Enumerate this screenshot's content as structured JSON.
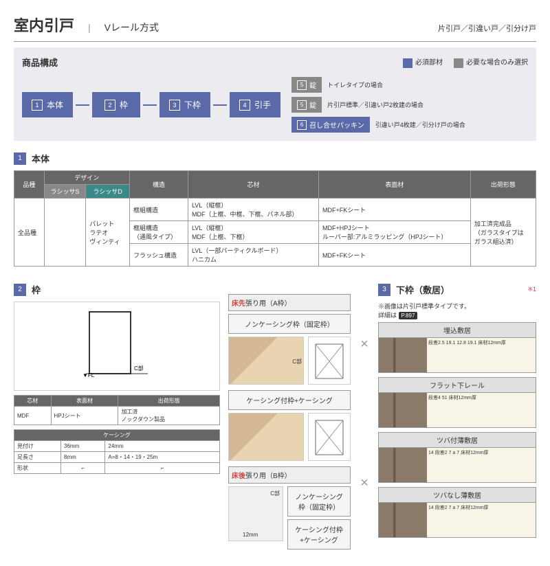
{
  "header": {
    "title": "室内引戸",
    "sep": "|",
    "subtitle": "Vレール方式",
    "right": "片引戸／引違い戸／引分け戸"
  },
  "composition": {
    "title": "商品構成",
    "legend": [
      {
        "color": "#5a6aa8",
        "label": "必須部材"
      },
      {
        "color": "#888",
        "label": "必要な場合のみ選択"
      }
    ],
    "boxes": [
      {
        "n": "1",
        "t": "本体"
      },
      {
        "n": "2",
        "t": "枠"
      },
      {
        "n": "3",
        "t": "下枠"
      },
      {
        "n": "4",
        "t": "引手"
      }
    ],
    "branches": [
      {
        "n": "5",
        "t": "錠",
        "cls": "gray",
        "note": "トイレタイプの場合"
      },
      {
        "n": "5",
        "t": "錠",
        "cls": "gray",
        "note": "片引戸標準／引違い戸2枚建の場合"
      },
      {
        "n": "6",
        "t": "召し合せパッキン",
        "cls": "blue",
        "note": "引違い戸4枚建／引分け戸の場合"
      }
    ]
  },
  "sec1": {
    "num": "1",
    "title": "本体"
  },
  "table1": {
    "headers": [
      "品種",
      "デザイン",
      "",
      "構造",
      "芯材",
      "表面材",
      "出荷形態"
    ],
    "sub": [
      "",
      "ラシッサS",
      "ラシッサD",
      "",
      "",
      "",
      ""
    ],
    "rows": [
      [
        "全品種",
        "",
        "パレット\nラテオ\nヴィンティ",
        "框組構造",
        "LVL（縦框）\nMDF（上框、中框、下框、パネル部）",
        "MDF+FKシート",
        "加工済完成品\n（ガラスタイプは\nガラス組込済）"
      ],
      [
        "",
        "",
        "",
        "框組構造\n（通風タイプ）",
        "LVL（縦框）\nMDF（上框、下框）",
        "MDF+HPJシート\nルーバー部:アルミラッピング（HPJシート）",
        ""
      ],
      [
        "",
        "",
        "",
        "フラッシュ構造",
        "LVL（一部パーティクルボード）\nハニカム",
        "MDF+FKシート",
        ""
      ]
    ]
  },
  "sec2": {
    "num": "2",
    "title": "枠"
  },
  "sec3": {
    "num": "3",
    "title": "下枠（敷居）",
    "note": "※1"
  },
  "sec3note": "※画像は片引戸標準タイプです。\n詳細は",
  "sec3ref": "P.897",
  "frame": {
    "tbl1": {
      "h": [
        "芯材",
        "表面材",
        "出荷形態"
      ],
      "r": [
        "MDF",
        "HPJシート",
        "加工済\nノックダウン製品"
      ]
    },
    "tbl2": {
      "h": [
        "ケーシング"
      ],
      "sub": [
        "見付け",
        "36mm",
        "24mm"
      ],
      "r1": [
        "足長さ",
        "8mm",
        "A=8・14・19・25m"
      ],
      "r2": [
        "形状",
        "",
        ""
      ]
    },
    "a": {
      "label": "床先張り用（A枠）",
      "opts": [
        "ノンケーシング枠（固定枠）",
        "ケーシング付枠+ケーシング"
      ]
    },
    "b": {
      "label": "床後張り用（B枠）",
      "opts": [
        "ノンケーシング枠（固定枠）",
        "ケーシング付枠+ケーシング"
      ],
      "dim": "12mm"
    }
  },
  "sills": [
    {
      "t": "埋込敷居",
      "dims": [
        "段差2.5",
        "19.1",
        "12.8",
        "19.1",
        "床材12mm厚"
      ]
    },
    {
      "t": "フラット下レール",
      "dims": [
        "段差4",
        "51",
        "床材12mm厚"
      ]
    },
    {
      "t": "ツバ付薄敷居",
      "dims": [
        "14",
        "段差2",
        "7",
        "a",
        "7",
        "床材12mm厚"
      ]
    },
    {
      "t": "ツバなし薄敷居",
      "dims": [
        "14",
        "段差2",
        "7",
        "a",
        "7",
        "床材12mm厚"
      ]
    }
  ]
}
